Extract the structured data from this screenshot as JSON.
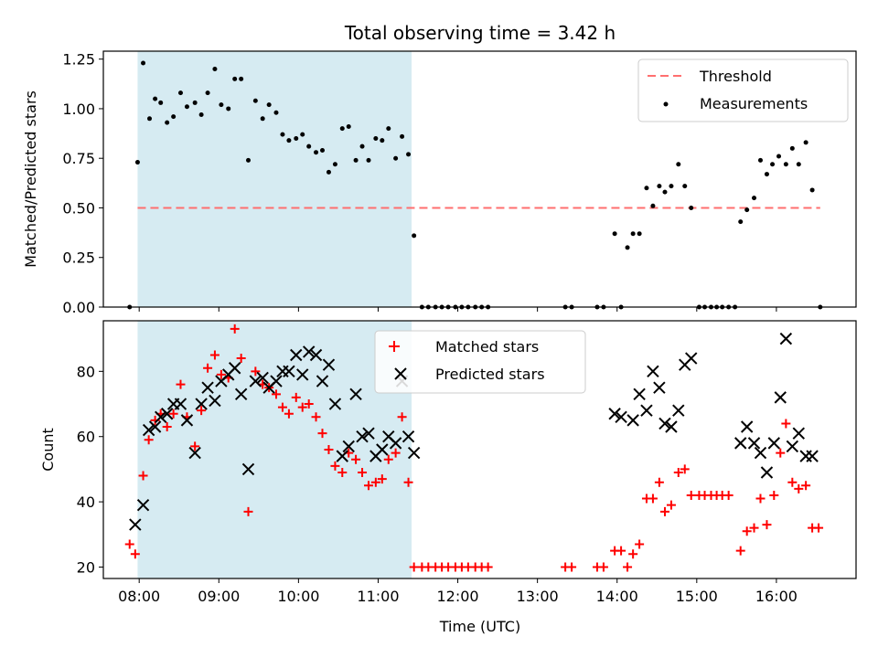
{
  "title": "Total observing time = 3.42 h",
  "colors": {
    "shade": "#add8e6",
    "threshold": "#ff6f6f",
    "measurements": "#000000",
    "matched": "#ff0000",
    "predicted": "#000000"
  },
  "chart_data": [
    {
      "type": "scatter",
      "ylabel": "Matched/Predicted stars",
      "ylim": [
        0,
        1.29
      ],
      "yticks": [
        0.0,
        0.25,
        0.5,
        0.75,
        1.0,
        1.25
      ],
      "ytick_labels": [
        "0.00",
        "0.25",
        "0.50",
        "0.75",
        "1.00",
        "1.25"
      ],
      "xlim": [
        7.55,
        17.0
      ],
      "xticks": [
        8,
        9,
        10,
        11,
        12,
        13,
        14,
        15,
        16
      ],
      "shaded_region": [
        7.98,
        11.42
      ],
      "legend": {
        "position": "top-right",
        "entries": [
          "Threshold",
          "Measurements"
        ]
      },
      "threshold": {
        "name": "Threshold",
        "x": [
          7.98,
          16.55
        ],
        "y": 0.5,
        "style": "dashed"
      },
      "series": [
        {
          "name": "Measurements",
          "marker": "dot",
          "points": [
            [
              7.88,
              0.0
            ],
            [
              7.98,
              0.73
            ],
            [
              8.05,
              1.23
            ],
            [
              8.13,
              0.95
            ],
            [
              8.2,
              1.05
            ],
            [
              8.27,
              1.03
            ],
            [
              8.35,
              0.93
            ],
            [
              8.43,
              0.96
            ],
            [
              8.52,
              1.08
            ],
            [
              8.6,
              1.01
            ],
            [
              8.7,
              1.03
            ],
            [
              8.78,
              0.97
            ],
            [
              8.86,
              1.08
            ],
            [
              8.95,
              1.2
            ],
            [
              9.03,
              1.02
            ],
            [
              9.12,
              1.0
            ],
            [
              9.2,
              1.15
            ],
            [
              9.28,
              1.15
            ],
            [
              9.37,
              0.74
            ],
            [
              9.46,
              1.04
            ],
            [
              9.55,
              0.95
            ],
            [
              9.63,
              1.02
            ],
            [
              9.72,
              0.98
            ],
            [
              9.8,
              0.87
            ],
            [
              9.88,
              0.84
            ],
            [
              9.97,
              0.85
            ],
            [
              10.05,
              0.87
            ],
            [
              10.13,
              0.81
            ],
            [
              10.22,
              0.78
            ],
            [
              10.3,
              0.79
            ],
            [
              10.38,
              0.68
            ],
            [
              10.46,
              0.72
            ],
            [
              10.55,
              0.9
            ],
            [
              10.63,
              0.91
            ],
            [
              10.72,
              0.74
            ],
            [
              10.8,
              0.81
            ],
            [
              10.88,
              0.74
            ],
            [
              10.97,
              0.85
            ],
            [
              11.05,
              0.84
            ],
            [
              11.13,
              0.9
            ],
            [
              11.22,
              0.75
            ],
            [
              11.3,
              0.86
            ],
            [
              11.38,
              0.77
            ],
            [
              11.45,
              0.36
            ],
            [
              11.55,
              0.0
            ],
            [
              11.63,
              0.0
            ],
            [
              11.72,
              0.0
            ],
            [
              11.8,
              0.0
            ],
            [
              11.88,
              0.0
            ],
            [
              11.97,
              0.0
            ],
            [
              12.05,
              0.0
            ],
            [
              12.13,
              0.0
            ],
            [
              12.22,
              0.0
            ],
            [
              12.3,
              0.0
            ],
            [
              12.38,
              0.0
            ],
            [
              13.35,
              0.0
            ],
            [
              13.43,
              0.0
            ],
            [
              13.75,
              0.0
            ],
            [
              13.83,
              0.0
            ],
            [
              13.97,
              0.37
            ],
            [
              14.05,
              0.0
            ],
            [
              14.13,
              0.3
            ],
            [
              14.2,
              0.37
            ],
            [
              14.28,
              0.37
            ],
            [
              14.37,
              0.6
            ],
            [
              14.45,
              0.51
            ],
            [
              14.53,
              0.61
            ],
            [
              14.6,
              0.58
            ],
            [
              14.68,
              0.61
            ],
            [
              14.77,
              0.72
            ],
            [
              14.85,
              0.61
            ],
            [
              14.93,
              0.5
            ],
            [
              15.03,
              0.0
            ],
            [
              15.1,
              0.0
            ],
            [
              15.18,
              0.0
            ],
            [
              15.25,
              0.0
            ],
            [
              15.32,
              0.0
            ],
            [
              15.4,
              0.0
            ],
            [
              15.48,
              0.0
            ],
            [
              15.55,
              0.43
            ],
            [
              15.63,
              0.49
            ],
            [
              15.72,
              0.55
            ],
            [
              15.8,
              0.74
            ],
            [
              15.88,
              0.67
            ],
            [
              15.95,
              0.72
            ],
            [
              16.03,
              0.76
            ],
            [
              16.12,
              0.72
            ],
            [
              16.2,
              0.8
            ],
            [
              16.28,
              0.72
            ],
            [
              16.37,
              0.83
            ],
            [
              16.45,
              0.59
            ],
            [
              16.55,
              0.0
            ]
          ]
        }
      ]
    },
    {
      "type": "scatter",
      "xlabel": "Time (UTC)",
      "ylabel": "Count",
      "ylim": [
        16.5,
        95.5
      ],
      "yticks": [
        20,
        40,
        60,
        80
      ],
      "xlim": [
        7.55,
        17.0
      ],
      "xticks": [
        8,
        9,
        10,
        11,
        12,
        13,
        14,
        15,
        16
      ],
      "xtick_labels": [
        "08:00",
        "09:00",
        "10:00",
        "11:00",
        "12:00",
        "13:00",
        "14:00",
        "15:00",
        "16:00"
      ],
      "shaded_region": [
        7.98,
        11.42
      ],
      "legend": {
        "position": "top-center",
        "entries": [
          "Matched stars",
          "Predicted stars"
        ]
      },
      "series": [
        {
          "name": "Matched stars",
          "marker": "plus",
          "points": [
            [
              7.88,
              27
            ],
            [
              7.95,
              24
            ],
            [
              8.05,
              48
            ],
            [
              8.12,
              59
            ],
            [
              8.2,
              65
            ],
            [
              8.27,
              67
            ],
            [
              8.35,
              63
            ],
            [
              8.43,
              67
            ],
            [
              8.52,
              76
            ],
            [
              8.6,
              66
            ],
            [
              8.7,
              57
            ],
            [
              8.78,
              68
            ],
            [
              8.86,
              81
            ],
            [
              8.95,
              85
            ],
            [
              9.03,
              79
            ],
            [
              9.12,
              78
            ],
            [
              9.2,
              93
            ],
            [
              9.28,
              84
            ],
            [
              9.37,
              37
            ],
            [
              9.46,
              80
            ],
            [
              9.55,
              76
            ],
            [
              9.63,
              75
            ],
            [
              9.72,
              73
            ],
            [
              9.8,
              69
            ],
            [
              9.88,
              67
            ],
            [
              9.97,
              72
            ],
            [
              10.05,
              69
            ],
            [
              10.13,
              70
            ],
            [
              10.22,
              66
            ],
            [
              10.3,
              61
            ],
            [
              10.38,
              56
            ],
            [
              10.46,
              51
            ],
            [
              10.55,
              49
            ],
            [
              10.63,
              55
            ],
            [
              10.72,
              53
            ],
            [
              10.8,
              49
            ],
            [
              10.88,
              45
            ],
            [
              10.97,
              46
            ],
            [
              11.05,
              47
            ],
            [
              11.13,
              53
            ],
            [
              11.22,
              55
            ],
            [
              11.3,
              66
            ],
            [
              11.38,
              46
            ],
            [
              11.45,
              20
            ],
            [
              11.55,
              20
            ],
            [
              11.63,
              20
            ],
            [
              11.72,
              20
            ],
            [
              11.8,
              20
            ],
            [
              11.88,
              20
            ],
            [
              11.97,
              20
            ],
            [
              12.05,
              20
            ],
            [
              12.13,
              20
            ],
            [
              12.22,
              20
            ],
            [
              12.3,
              20
            ],
            [
              12.38,
              20
            ],
            [
              13.35,
              20
            ],
            [
              13.43,
              20
            ],
            [
              13.75,
              20
            ],
            [
              13.83,
              20
            ],
            [
              13.97,
              25
            ],
            [
              14.05,
              25
            ],
            [
              14.13,
              20
            ],
            [
              14.2,
              24
            ],
            [
              14.28,
              27
            ],
            [
              14.37,
              41
            ],
            [
              14.45,
              41
            ],
            [
              14.53,
              46
            ],
            [
              14.6,
              37
            ],
            [
              14.68,
              39
            ],
            [
              14.77,
              49
            ],
            [
              14.85,
              50
            ],
            [
              14.93,
              42
            ],
            [
              15.03,
              42
            ],
            [
              15.1,
              42
            ],
            [
              15.18,
              42
            ],
            [
              15.25,
              42
            ],
            [
              15.32,
              42
            ],
            [
              15.4,
              42
            ],
            [
              15.55,
              25
            ],
            [
              15.63,
              31
            ],
            [
              15.72,
              32
            ],
            [
              15.8,
              41
            ],
            [
              15.88,
              33
            ],
            [
              15.97,
              42
            ],
            [
              16.05,
              55
            ],
            [
              16.12,
              64
            ],
            [
              16.2,
              46
            ],
            [
              16.28,
              44
            ],
            [
              16.37,
              45
            ],
            [
              16.45,
              32
            ],
            [
              16.53,
              32
            ]
          ]
        },
        {
          "name": "Predicted stars",
          "marker": "x",
          "points": [
            [
              7.95,
              33
            ],
            [
              8.05,
              39
            ],
            [
              8.12,
              62
            ],
            [
              8.2,
              63
            ],
            [
              8.27,
              66
            ],
            [
              8.35,
              67
            ],
            [
              8.43,
              70
            ],
            [
              8.52,
              70
            ],
            [
              8.6,
              65
            ],
            [
              8.7,
              55
            ],
            [
              8.78,
              70
            ],
            [
              8.86,
              75
            ],
            [
              8.95,
              71
            ],
            [
              9.03,
              77
            ],
            [
              9.12,
              79
            ],
            [
              9.2,
              81
            ],
            [
              9.28,
              73
            ],
            [
              9.37,
              50
            ],
            [
              9.46,
              77
            ],
            [
              9.55,
              78
            ],
            [
              9.63,
              75
            ],
            [
              9.72,
              77
            ],
            [
              9.8,
              80
            ],
            [
              9.88,
              80
            ],
            [
              9.97,
              85
            ],
            [
              10.05,
              79
            ],
            [
              10.13,
              86
            ],
            [
              10.22,
              85
            ],
            [
              10.3,
              77
            ],
            [
              10.38,
              82
            ],
            [
              10.46,
              70
            ],
            [
              10.55,
              54
            ],
            [
              10.63,
              57
            ],
            [
              10.72,
              73
            ],
            [
              10.8,
              60
            ],
            [
              10.88,
              61
            ],
            [
              10.97,
              54
            ],
            [
              11.05,
              56
            ],
            [
              11.13,
              60
            ],
            [
              11.22,
              58
            ],
            [
              11.3,
              77
            ],
            [
              11.38,
              60
            ],
            [
              11.45,
              55
            ],
            [
              13.97,
              67
            ],
            [
              14.05,
              66
            ],
            [
              14.2,
              65
            ],
            [
              14.28,
              73
            ],
            [
              14.37,
              68
            ],
            [
              14.45,
              80
            ],
            [
              14.53,
              75
            ],
            [
              14.6,
              64
            ],
            [
              14.68,
              63
            ],
            [
              14.77,
              68
            ],
            [
              14.85,
              82
            ],
            [
              14.93,
              84
            ],
            [
              15.55,
              58
            ],
            [
              15.63,
              63
            ],
            [
              15.72,
              58
            ],
            [
              15.8,
              55
            ],
            [
              15.88,
              49
            ],
            [
              15.97,
              58
            ],
            [
              16.05,
              72
            ],
            [
              16.12,
              90
            ],
            [
              16.2,
              57
            ],
            [
              16.28,
              61
            ],
            [
              16.37,
              54
            ],
            [
              16.45,
              54
            ]
          ]
        }
      ]
    }
  ]
}
